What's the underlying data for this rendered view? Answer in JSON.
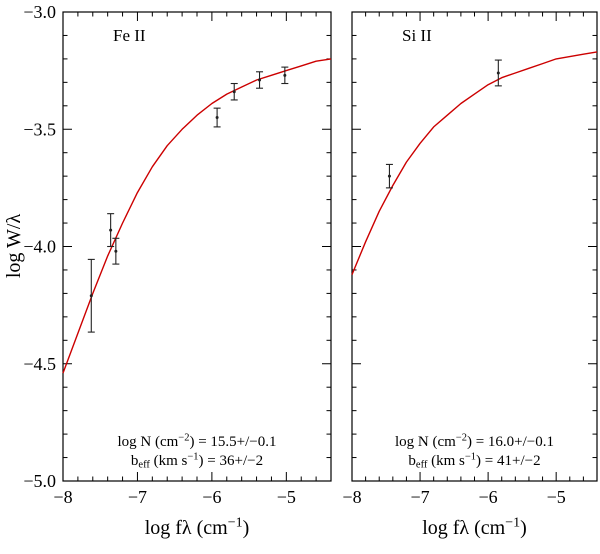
{
  "figure": {
    "background": "#ffffff",
    "axis_color": "#000000",
    "curve_color": "#cc0000",
    "errorbar_color": "#222222",
    "ylabel": "log W/λ",
    "ylim": [
      -5.0,
      -3.0
    ],
    "xlim": [
      -8.0,
      -4.4
    ],
    "yticks": [
      -5.0,
      -4.5,
      -4.0,
      -3.5,
      -3.0
    ],
    "ytick_labels": [
      "−5.0",
      "−4.5",
      "−4.0",
      "−3.5",
      "−3.0"
    ],
    "xticks": [
      -8,
      -7,
      -6,
      -5
    ],
    "xtick_labels": [
      "−8",
      "−7",
      "−6",
      "−5"
    ],
    "x_minor_step": 0.2,
    "y_minor_step": 0.1,
    "xlabel_segments": [
      {
        "t": "log fλ (cm"
      },
      {
        "t": "−1",
        "sup": true
      },
      {
        "t": ")"
      }
    ]
  },
  "chart_data": [
    {
      "type": "line",
      "title": "Fe II",
      "xlabel": "log fλ (cm−1)",
      "ylabel": "log W/λ",
      "xlim": [
        -8.0,
        -4.4
      ],
      "ylim": [
        -5.0,
        -3.0
      ],
      "fit_params": {
        "logN_cm2": "15.5+/−0.1",
        "beff_km_s": "36+/−2"
      },
      "annotation_lines": [
        [
          {
            "t": "log N (cm"
          },
          {
            "t": "−2",
            "sup": true
          },
          {
            "t": ") = 15.5+/−0.1"
          }
        ],
        [
          {
            "t": "b"
          },
          {
            "t": "eff",
            "sub": true
          },
          {
            "t": " (km s"
          },
          {
            "t": "−1",
            "sup": true
          },
          {
            "t": ") =  36+/−2"
          }
        ]
      ],
      "curve": {
        "x": [
          -8.0,
          -7.8,
          -7.6,
          -7.4,
          -7.2,
          -7.0,
          -6.8,
          -6.6,
          -6.4,
          -6.2,
          -6.0,
          -5.8,
          -5.6,
          -5.4,
          -5.2,
          -5.0,
          -4.8,
          -4.6,
          -4.4
        ],
        "y": [
          -4.54,
          -4.37,
          -4.2,
          -4.04,
          -3.9,
          -3.77,
          -3.66,
          -3.57,
          -3.5,
          -3.44,
          -3.39,
          -3.35,
          -3.32,
          -3.29,
          -3.27,
          -3.25,
          -3.23,
          -3.21,
          -3.2
        ]
      },
      "points": [
        {
          "x": -7.62,
          "y": -4.21,
          "yerr": 0.155
        },
        {
          "x": -7.36,
          "y": -3.93,
          "yerr": 0.07
        },
        {
          "x": -7.29,
          "y": -4.02,
          "yerr": 0.055
        },
        {
          "x": -5.93,
          "y": -3.45,
          "yerr": 0.04
        },
        {
          "x": -5.7,
          "y": -3.34,
          "yerr": 0.035
        },
        {
          "x": -5.36,
          "y": -3.29,
          "yerr": 0.035
        },
        {
          "x": -5.02,
          "y": -3.27,
          "yerr": 0.035
        }
      ]
    },
    {
      "type": "line",
      "title": "Si II",
      "xlabel": "log fλ (cm−1)",
      "ylabel": "log W/λ",
      "xlim": [
        -8.0,
        -4.4
      ],
      "ylim": [
        -5.0,
        -3.0
      ],
      "fit_params": {
        "logN_cm2": "16.0+/−0.1",
        "beff_km_s": "41+/−2"
      },
      "annotation_lines": [
        [
          {
            "t": "log N (cm"
          },
          {
            "t": "−2",
            "sup": true
          },
          {
            "t": ") = 16.0+/−0.1"
          }
        ],
        [
          {
            "t": "b"
          },
          {
            "t": "eff",
            "sub": true
          },
          {
            "t": " (km s"
          },
          {
            "t": "−1",
            "sup": true
          },
          {
            "t": ") =  41+/−2"
          }
        ]
      ],
      "curve": {
        "x": [
          -8.0,
          -7.8,
          -7.6,
          -7.4,
          -7.2,
          -7.0,
          -6.8,
          -6.6,
          -6.4,
          -6.2,
          -6.0,
          -5.8,
          -5.6,
          -5.4,
          -5.2,
          -5.0,
          -4.8,
          -4.6,
          -4.4
        ],
        "y": [
          -4.12,
          -3.98,
          -3.85,
          -3.74,
          -3.64,
          -3.56,
          -3.49,
          -3.44,
          -3.39,
          -3.35,
          -3.31,
          -3.28,
          -3.26,
          -3.24,
          -3.22,
          -3.2,
          -3.19,
          -3.18,
          -3.17
        ]
      },
      "points": [
        {
          "x": -7.45,
          "y": -3.7,
          "yerr": 0.05
        },
        {
          "x": -5.85,
          "y": -3.26,
          "yerr": 0.055
        }
      ]
    }
  ]
}
